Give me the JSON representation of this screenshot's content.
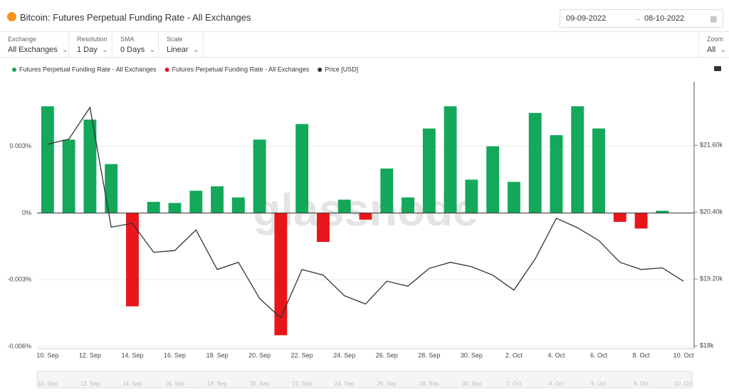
{
  "header": {
    "title": "Bitcoin: Futures Perpetual Funding Rate - All Exchanges",
    "date_from": "09-09-2022",
    "date_to": "08-10-2022"
  },
  "controls": [
    {
      "label": "Exchange",
      "value": "All Exchanges"
    },
    {
      "label": "Resolution",
      "value": "1 Day"
    },
    {
      "label": "SMA",
      "value": "0 Days"
    },
    {
      "label": "Scale",
      "value": "Linear"
    },
    {
      "label": "Zoom",
      "value": "All"
    }
  ],
  "chart_data": {
    "type": "bar",
    "watermark": "glassnode",
    "legend": "top-left",
    "categories": [
      "10. Sep",
      null,
      "12. Sep",
      null,
      "14. Sep",
      null,
      "16. Sep",
      null,
      "18. Sep",
      null,
      "20. Sep",
      null,
      "22. Sep",
      null,
      "24. Sep",
      null,
      "26. Sep",
      null,
      "28. Sep",
      null,
      "30. Sep",
      null,
      "2. Oct",
      null,
      "4. Oct",
      null,
      "6. Oct",
      null,
      "8. Oct",
      null,
      "10. Oct"
    ],
    "ylim": [
      -0.0061,
      0.0059
    ],
    "yticks": [
      {
        "value": 0.003,
        "label": "0.003%"
      },
      {
        "value": 0,
        "label": "0%"
      },
      {
        "value": -0.003,
        "label": "-0.003%"
      },
      {
        "value": -0.006,
        "label": "-0.006%"
      }
    ],
    "y2lim": [
      17950,
      22740
    ],
    "y2ticks": [
      {
        "value": 21600,
        "label": "$21.60k"
      },
      {
        "value": 20400,
        "label": "$20.40k"
      },
      {
        "value": 19200,
        "label": "$19.20k"
      },
      {
        "value": 18000,
        "label": "$18k"
      }
    ],
    "grid": true,
    "series": [
      {
        "name": "Futures Perpetual Funding Rate - All Exchanges",
        "type": "bar",
        "color": "#13a85a",
        "values": [
          0.0048,
          0.0033,
          0.0042,
          0.0022,
          null,
          0.0005,
          0.00045,
          0.001,
          0.0012,
          0.0007,
          0.0033,
          null,
          0.004,
          null,
          0.0006,
          null,
          0.002,
          0.0007,
          0.0038,
          0.0048,
          0.0015,
          0.003,
          0.0014,
          0.0045,
          0.0035,
          0.0048,
          0.0038,
          null,
          null,
          0.0001,
          null
        ]
      },
      {
        "name": "Futures Perpetual Funding Rate - All Exchanges",
        "type": "bar",
        "color": "#e8161b",
        "values": [
          null,
          null,
          null,
          null,
          -0.0042,
          null,
          null,
          null,
          null,
          null,
          null,
          -0.0055,
          null,
          -0.0013,
          null,
          -0.0003,
          null,
          null,
          null,
          null,
          null,
          null,
          null,
          null,
          null,
          null,
          null,
          -0.0004,
          -0.0007,
          null,
          null
        ]
      },
      {
        "name": "Price [USD]",
        "type": "line",
        "axis": "y2",
        "color": "#333333",
        "values": [
          21620,
          21710,
          22280,
          20130,
          20200,
          19680,
          19710,
          20080,
          19370,
          19500,
          18850,
          18500,
          19370,
          19270,
          18900,
          18750,
          19160,
          19070,
          19390,
          19500,
          19420,
          19270,
          19000,
          19560,
          20290,
          20120,
          19890,
          19500,
          19370,
          19400,
          19160
        ]
      }
    ]
  }
}
